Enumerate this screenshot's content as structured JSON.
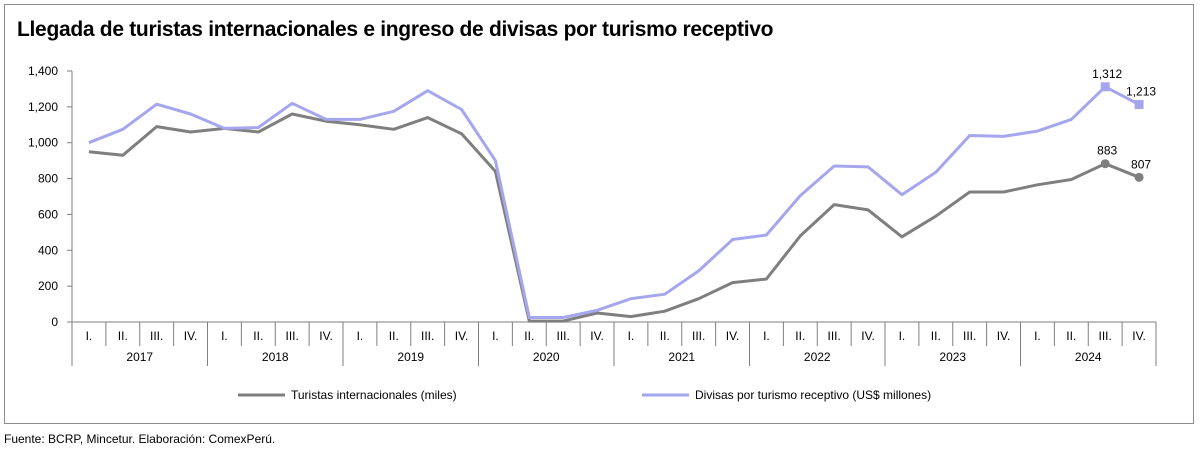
{
  "chart_data": {
    "type": "line",
    "title": "Llegada de turistas internacionales e ingreso de divisas por turismo receptivo",
    "quarters": [
      "I.",
      "II.",
      "III.",
      "IV."
    ],
    "years": [
      "2017",
      "2018",
      "2019",
      "2020",
      "2021",
      "2022",
      "2023",
      "2024"
    ],
    "ylim": [
      0,
      1400
    ],
    "yticks": [
      "0",
      "200",
      "400",
      "600",
      "800",
      "1,000",
      "1,200",
      "1,400"
    ],
    "grid": false,
    "legend_position": "bottom",
    "series": [
      {
        "name": "Turistas internacionales (miles)",
        "color": "#7f7f7f",
        "values": [
          950,
          930,
          1090,
          1060,
          1080,
          1060,
          1160,
          1120,
          1100,
          1075,
          1140,
          1050,
          840,
          5,
          5,
          50,
          30,
          60,
          130,
          220,
          240,
          480,
          655,
          625,
          475,
          590,
          725,
          725,
          765,
          795,
          883,
          807
        ],
        "labels": {
          "30": "883",
          "31": "807"
        }
      },
      {
        "name": "Divisas por turismo receptivo (US$ millones)",
        "color": "#a6a6ee",
        "values": [
          1000,
          1075,
          1215,
          1160,
          1080,
          1085,
          1220,
          1130,
          1130,
          1175,
          1290,
          1185,
          900,
          25,
          25,
          65,
          130,
          155,
          285,
          460,
          485,
          705,
          870,
          865,
          710,
          835,
          1040,
          1035,
          1065,
          1130,
          1312,
          1213
        ],
        "labels": {
          "30": "1,312",
          "31": "1,213"
        }
      }
    ]
  },
  "source": "Fuente: BCRP, Mincetur. Elaboración: ComexPerú."
}
